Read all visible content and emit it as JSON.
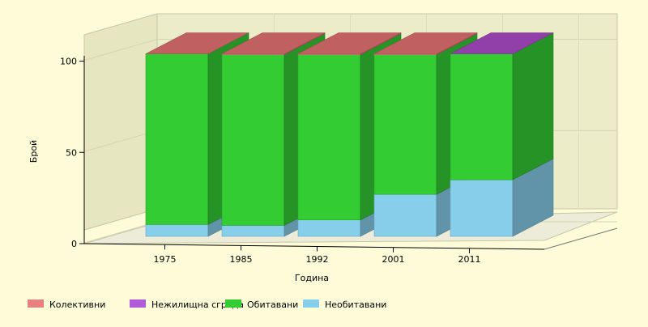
{
  "chart_data": {
    "type": "bar",
    "stacked": true,
    "three_d": true,
    "xlabel": "Година",
    "ylabel": "Брой",
    "categories": [
      "1975",
      "1985",
      "1992",
      "2001",
      "2011"
    ],
    "series": [
      {
        "name": "Необитавани",
        "color": "#87ceeb",
        "values": [
          6.5,
          6,
          9,
          23,
          31
        ]
      },
      {
        "name": "Обитавани",
        "color": "#33cc33",
        "values": [
          93.5,
          93.5,
          90.5,
          76.5,
          69
        ]
      },
      {
        "name": "Нежилищна сграда",
        "color": "#b05cd6",
        "values": [
          0,
          0,
          0,
          0,
          0
        ]
      },
      {
        "name": "Колективни",
        "color": "#e88080",
        "values": [
          0,
          0.5,
          0.5,
          0.5,
          0
        ]
      }
    ],
    "top_face_colors": [
      "#c06060",
      "#c06060",
      "#c06060",
      "#c06060",
      "#9040a8"
    ],
    "yticks": [
      0,
      50,
      100
    ],
    "ylim": [
      0,
      100
    ],
    "legend_position": "bottom-left",
    "legend": [
      {
        "label": "Колективни",
        "color": "#e88080"
      },
      {
        "label": "Нежилищна сграда",
        "color": "#b05cd6"
      },
      {
        "label": "Обитавани",
        "color": "#33cc33"
      },
      {
        "label": "Необитавани",
        "color": "#87ceeb"
      }
    ]
  }
}
